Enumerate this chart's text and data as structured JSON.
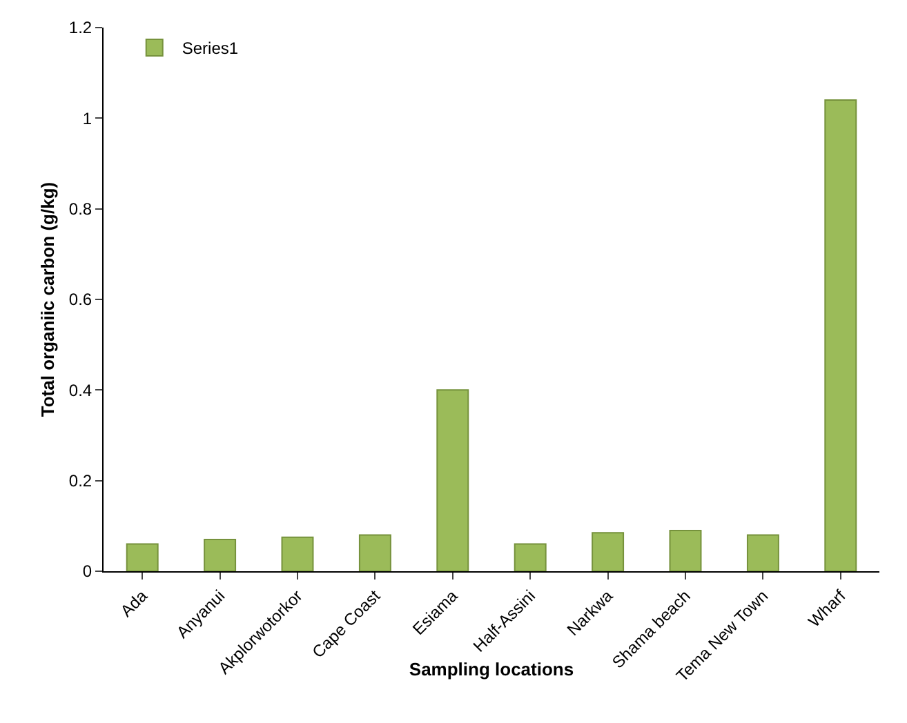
{
  "chart_data": {
    "type": "bar",
    "xlabel": "Sampling locations",
    "ylabel": "Total organiic carbon (g/kg)",
    "categories": [
      "Ada",
      "Anyanui",
      "Akplorwotorkor",
      "Cape Coast",
      "Esiama",
      "Half-Assini",
      "Narkwa",
      "Shama beach",
      "Tema New Town",
      "Wharf"
    ],
    "series": [
      {
        "name": "Series1",
        "color": "#9bbb59",
        "values": [
          0.06,
          0.07,
          0.075,
          0.08,
          0.4,
          0.06,
          0.085,
          0.09,
          0.08,
          1.04
        ]
      }
    ],
    "ylim": [
      0,
      1.2
    ],
    "yticks": [
      0,
      0.2,
      0.4,
      0.6,
      0.8,
      1,
      1.2
    ],
    "grid": false,
    "legend": "top left"
  }
}
